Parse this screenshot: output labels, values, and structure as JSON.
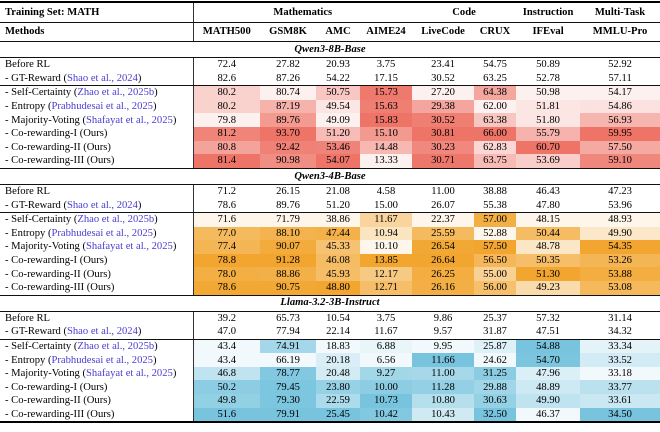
{
  "page": {
    "background": "#ffffff",
    "text_color": "#000000",
    "rule_color": "#111111",
    "divider_color": "#333333",
    "citation_color": "#4a3dd2"
  },
  "table": {
    "training_set_label": "Training Set: MATH",
    "methods_label": "Methods",
    "group_headers": [
      {
        "label": "Mathematics",
        "span": 4
      },
      {
        "label": "Code",
        "span": 2
      },
      {
        "label": "Instruction",
        "span": 1
      },
      {
        "label": "Multi-Task",
        "span": 1
      }
    ],
    "columns": [
      "MATH500",
      "GSM8K",
      "AMC",
      "AIME24",
      "LiveCode",
      "CRUX",
      "IFEval",
      "MMLU-Pro"
    ],
    "heat_min_alpha": 0.1,
    "sections": [
      {
        "title": "Qwen3-8B-Base",
        "accent": "#ee7468",
        "baseline_rows": [
          {
            "label": {
              "prefix": "Before RL",
              "cite": "",
              "suffix": ""
            },
            "values": [
              "72.4",
              "27.82",
              "20.93",
              "3.75",
              "23.41",
              "54.75",
              "50.89",
              "52.92"
            ]
          },
          {
            "label": {
              "prefix": "- GT-Reward (",
              "cite": "Shao et al., 2024",
              "suffix": ")"
            },
            "values": [
              "82.6",
              "87.26",
              "54.22",
              "17.15",
              "30.52",
              "63.25",
              "52.78",
              "57.11"
            ]
          }
        ],
        "method_rows": [
          {
            "label": {
              "prefix": "- Self-Certainty (",
              "cite": "Zhao et al., 2025b",
              "suffix": ")"
            },
            "values": [
              "80.2",
              "80.74",
              "50.75",
              "15.73",
              "27.20",
              "64.38",
              "50.98",
              "54.17"
            ]
          },
          {
            "label": {
              "prefix": "- Entropy (",
              "cite": "Prabhudesai et al., 2025",
              "suffix": ")"
            },
            "values": [
              "80.2",
              "87.19",
              "49.54",
              "15.63",
              "29.38",
              "62.00",
              "51.81",
              "54.86"
            ]
          },
          {
            "label": {
              "prefix": "- Majority-Voting (",
              "cite": "Shafayat et al., 2025",
              "suffix": ")"
            },
            "values": [
              "79.8",
              "89.76",
              "49.09",
              "15.83",
              "30.52",
              "63.38",
              "51.80",
              "56.93"
            ]
          },
          {
            "label": {
              "prefix": "- Co-rewarding-I (Ours)",
              "cite": "",
              "suffix": ""
            },
            "values": [
              "81.2",
              "93.70",
              "51.20",
              "15.10",
              "30.81",
              "66.00",
              "55.79",
              "59.95"
            ]
          },
          {
            "label": {
              "prefix": "- Co-rewarding-II (Ours)",
              "cite": "",
              "suffix": ""
            },
            "values": [
              "80.8",
              "92.42",
              "53.46",
              "14.48",
              "30.23",
              "62.83",
              "60.70",
              "57.50"
            ]
          },
          {
            "label": {
              "prefix": "- Co-rewarding-III (Ours)",
              "cite": "",
              "suffix": ""
            },
            "values": [
              "81.4",
              "90.98",
              "54.07",
              "13.33",
              "30.71",
              "63.75",
              "53.69",
              "59.10"
            ]
          }
        ]
      },
      {
        "title": "Qwen3-4B-Base",
        "accent": "#f2a630",
        "baseline_rows": [
          {
            "label": {
              "prefix": "Before RL",
              "cite": "",
              "suffix": ""
            },
            "values": [
              "71.2",
              "26.15",
              "21.08",
              "4.58",
              "11.00",
              "38.88",
              "46.43",
              "47.23"
            ]
          },
          {
            "label": {
              "prefix": "- GT-Reward (",
              "cite": "Shao et al., 2024",
              "suffix": ")"
            },
            "values": [
              "78.6",
              "89.76",
              "51.20",
              "15.00",
              "26.07",
              "55.38",
              "47.80",
              "53.96"
            ]
          }
        ],
        "method_rows": [
          {
            "label": {
              "prefix": "- Self-Certainty (",
              "cite": "Zhao et al., 2025b",
              "suffix": ")"
            },
            "values": [
              "71.6",
              "71.79",
              "38.86",
              "11.67",
              "22.37",
              "57.00",
              "48.15",
              "48.93"
            ]
          },
          {
            "label": {
              "prefix": "- Entropy (",
              "cite": "Prabhudesai et al., 2025",
              "suffix": ")"
            },
            "values": [
              "77.0",
              "88.10",
              "47.44",
              "10.94",
              "25.59",
              "52.88",
              "50.44",
              "49.90"
            ]
          },
          {
            "label": {
              "prefix": "- Majority-Voting (",
              "cite": "Shafayat et al., 2025",
              "suffix": ")"
            },
            "values": [
              "77.4",
              "90.07",
              "45.33",
              "10.10",
              "26.54",
              "57.50",
              "48.78",
              "54.35"
            ]
          },
          {
            "label": {
              "prefix": "- Co-rewarding-I (Ours)",
              "cite": "",
              "suffix": ""
            },
            "values": [
              "78.8",
              "91.28",
              "46.08",
              "13.85",
              "26.64",
              "56.50",
              "50.35",
              "53.26"
            ]
          },
          {
            "label": {
              "prefix": "- Co-rewarding-II (Ours)",
              "cite": "",
              "suffix": ""
            },
            "values": [
              "78.0",
              "88.86",
              "45.93",
              "12.17",
              "26.25",
              "55.00",
              "51.30",
              "53.88"
            ]
          },
          {
            "label": {
              "prefix": "- Co-rewarding-III (Ours)",
              "cite": "",
              "suffix": ""
            },
            "values": [
              "78.6",
              "90.75",
              "48.80",
              "12.71",
              "26.16",
              "56.00",
              "49.23",
              "53.08"
            ]
          }
        ]
      },
      {
        "title": "Llama-3.2-3B-Instruct",
        "accent": "#78c4de",
        "baseline_rows": [
          {
            "label": {
              "prefix": "Before RL",
              "cite": "",
              "suffix": ""
            },
            "values": [
              "39.2",
              "65.73",
              "10.54",
              "3.75",
              "9.86",
              "25.37",
              "57.32",
              "31.14"
            ]
          },
          {
            "label": {
              "prefix": "- GT-Reward (",
              "cite": "Shao et al., 2024",
              "suffix": ")"
            },
            "values": [
              "47.0",
              "77.94",
              "22.14",
              "11.67",
              "9.57",
              "31.87",
              "47.51",
              "34.32"
            ]
          }
        ],
        "method_rows": [
          {
            "label": {
              "prefix": "- Self-Certainty (",
              "cite": "Zhao et al., 2025b",
              "suffix": ")"
            },
            "values": [
              "43.4",
              "74.91",
              "18.83",
              "6.88",
              "9.95",
              "25.87",
              "54.88",
              "33.34"
            ]
          },
          {
            "label": {
              "prefix": "- Entropy (",
              "cite": "Prabhudesai et al., 2025",
              "suffix": ")"
            },
            "values": [
              "43.4",
              "66.19",
              "20.18",
              "6.56",
              "11.66",
              "24.62",
              "54.70",
              "33.52"
            ]
          },
          {
            "label": {
              "prefix": "- Majority-Voting (",
              "cite": "Shafayat et al., 2025",
              "suffix": ")"
            },
            "values": [
              "46.8",
              "78.77",
              "20.48",
              "9.27",
              "11.00",
              "31.25",
              "47.96",
              "33.18"
            ]
          },
          {
            "label": {
              "prefix": "- Co-rewarding-I (Ours)",
              "cite": "",
              "suffix": ""
            },
            "values": [
              "50.2",
              "79.45",
              "23.80",
              "10.00",
              "11.28",
              "29.88",
              "48.89",
              "33.77"
            ]
          },
          {
            "label": {
              "prefix": "- Co-rewarding-II (Ours)",
              "cite": "",
              "suffix": ""
            },
            "values": [
              "49.8",
              "79.30",
              "22.59",
              "10.73",
              "10.80",
              "30.63",
              "49.90",
              "33.61"
            ]
          },
          {
            "label": {
              "prefix": "- Co-rewarding-III (Ours)",
              "cite": "",
              "suffix": ""
            },
            "values": [
              "51.6",
              "79.91",
              "25.45",
              "10.42",
              "10.43",
              "32.50",
              "46.37",
              "34.50"
            ]
          }
        ]
      }
    ]
  }
}
